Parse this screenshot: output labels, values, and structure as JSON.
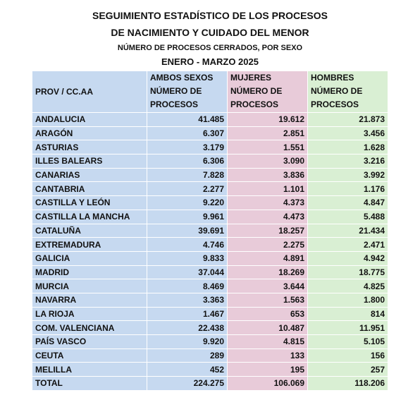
{
  "title": {
    "lines": [
      "SEGUIMIENTO ESTADÍSTICO DE LOS PROCESOS",
      "DE NACIMIENTO Y CUIDADO DEL MENOR",
      "NÚMERO DE PROCESOS CERRADOS, POR SEXO",
      "ENERO - MARZO 2025"
    ]
  },
  "table": {
    "header": {
      "region": "PROV / CC.AA",
      "columns": [
        {
          "name": "AMBOS SEXOS",
          "subtitle": [
            "NÚMERO DE",
            "PROCESOS"
          ]
        },
        {
          "name": "MUJERES",
          "subtitle": [
            "NÚMERO DE",
            "PROCESOS"
          ]
        },
        {
          "name": "HOMBRES",
          "subtitle": [
            "NÚMERO DE",
            "PROCESOS"
          ]
        }
      ]
    },
    "rows": [
      [
        "ANDALUCIA",
        "41.485",
        "19.612",
        "21.873"
      ],
      [
        "ARAGÓN",
        "6.307",
        "2.851",
        "3.456"
      ],
      [
        "ASTURIAS",
        "3.179",
        "1.551",
        "1.628"
      ],
      [
        "ILLES BALEARS",
        "6.306",
        "3.090",
        "3.216"
      ],
      [
        "CANARIAS",
        "7.828",
        "3.836",
        "3.992"
      ],
      [
        "CANTABRIA",
        "2.277",
        "1.101",
        "1.176"
      ],
      [
        "CASTILLA Y LEÓN",
        "9.220",
        "4.373",
        "4.847"
      ],
      [
        "CASTILLA LA MANCHA",
        "9.961",
        "4.473",
        "5.488"
      ],
      [
        "CATALUÑA",
        "39.691",
        "18.257",
        "21.434"
      ],
      [
        "EXTREMADURA",
        "4.746",
        "2.275",
        "2.471"
      ],
      [
        "GALICIA",
        "9.833",
        "4.891",
        "4.942"
      ],
      [
        "MADRID",
        "37.044",
        "18.269",
        "18.775"
      ],
      [
        "MURCIA",
        "8.469",
        "3.644",
        "4.825"
      ],
      [
        "NAVARRA",
        "3.363",
        "1.563",
        "1.800"
      ],
      [
        "LA RIOJA",
        "1.467",
        "653",
        "814"
      ],
      [
        "COM. VALENCIANA",
        "22.438",
        "10.487",
        "11.951"
      ],
      [
        "PAÍS VASCO",
        "9.920",
        "4.815",
        "5.105"
      ],
      [
        "CEUTA",
        "289",
        "133",
        "156"
      ],
      [
        "MELILLA",
        "452",
        "195",
        "257"
      ]
    ],
    "total": [
      "TOTAL",
      "224.275",
      "106.069",
      "118.206"
    ]
  }
}
